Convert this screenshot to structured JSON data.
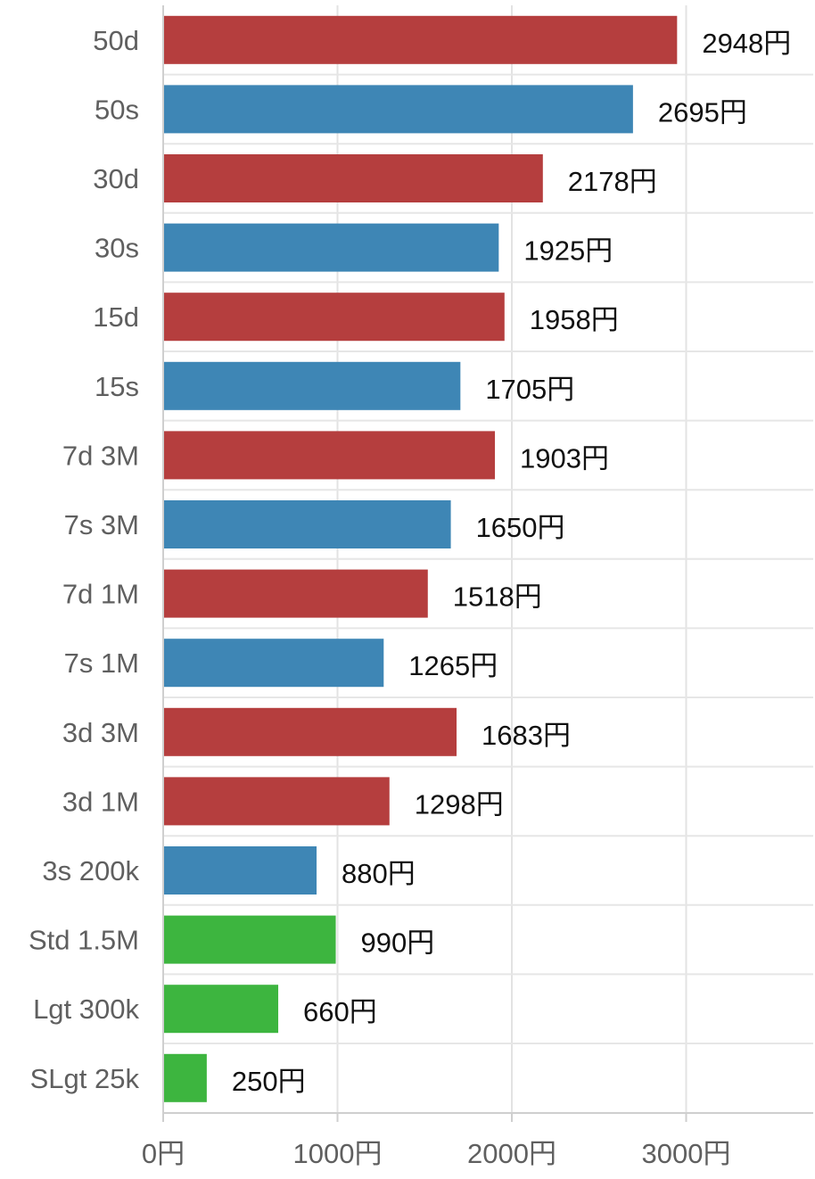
{
  "chart_data": {
    "type": "bar",
    "orientation": "horizontal",
    "title": "",
    "xlabel": "",
    "ylabel": "",
    "unit": "円",
    "xlim": [
      0,
      3700
    ],
    "x_ticks": [
      {
        "value": 0,
        "label": "0円"
      },
      {
        "value": 1000,
        "label": "1000円"
      },
      {
        "value": 2000,
        "label": "2000円"
      },
      {
        "value": 3000,
        "label": "3000円"
      }
    ],
    "grid": true,
    "legend": "none",
    "colors": {
      "red": "#b53e3e",
      "blue": "#3e86b5",
      "green": "#3db53f"
    },
    "categories": [
      "50d",
      "50s",
      "30d",
      "30s",
      "15d",
      "15s",
      "7d 3M",
      "7s 3M",
      "7d 1M",
      "7s 1M",
      "3d 3M",
      "3d 1M",
      "3s 200k",
      "Std 1.5M",
      "Lgt 300k",
      "SLgt 25k"
    ],
    "values": [
      2948,
      2695,
      2178,
      1925,
      1958,
      1705,
      1903,
      1650,
      1518,
      1265,
      1683,
      1298,
      880,
      990,
      660,
      250
    ],
    "value_labels": [
      "2948円",
      "2695円",
      "2178円",
      "1925円",
      "1958円",
      "1705円",
      "1903円",
      "1650円",
      "1518円",
      "1265円",
      "1683円",
      "1298円",
      "880円",
      "990円",
      "660円",
      "250円"
    ],
    "bar_colors": [
      "red",
      "blue",
      "red",
      "blue",
      "red",
      "blue",
      "red",
      "blue",
      "red",
      "blue",
      "red",
      "red",
      "blue",
      "green",
      "green",
      "green"
    ]
  }
}
